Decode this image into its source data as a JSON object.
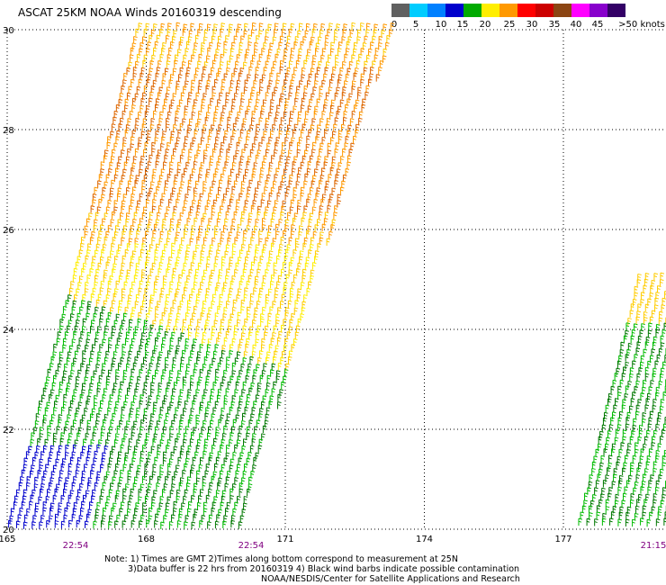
{
  "title": "ASCAT 25KM NOAA Winds 20160319 descending",
  "legend": {
    "labels": [
      "0",
      "5",
      "10",
      "15",
      "20",
      "25",
      "30",
      "35",
      "40",
      "45",
      ">50 knots"
    ],
    "colors": [
      "#606060",
      "#00ccff",
      "#0080ff",
      "#0000cc",
      "#00aa00",
      "#ffee00",
      "#ff9900",
      "#ff0000",
      "#cc0000",
      "#8b4513",
      "#ff00ff",
      "#8800cc",
      "#330066"
    ]
  },
  "axes": {
    "lon_ticks": [
      "165",
      "168",
      "171",
      "174",
      "177"
    ],
    "lat_ticks": [
      "30",
      "28",
      "26",
      "24",
      "22",
      "20"
    ]
  },
  "times": [
    "22:54",
    "22:54",
    "21:15"
  ],
  "notes": {
    "line1": "Note: 1) Times are GMT 2)Times along bottom correspond to measurement at 25N",
    "line2": "3)Data buffer is 22 hrs from 20160319 4) Black wind barbs indicate possible contamination",
    "line3": "NOAA/NESDIS/Center for Satellite Applications and Research"
  },
  "swaths": [
    {
      "name": "main-swath",
      "lon_at_lat30": [
        167.8,
        173.3
      ],
      "lon_at_lat20": [
        165.0,
        170.0
      ]
    },
    {
      "name": "east-swath",
      "lon_at_lat25": [
        178.6,
        179.4
      ],
      "lon_at_lat20": [
        177.3,
        179.4
      ]
    }
  ]
}
